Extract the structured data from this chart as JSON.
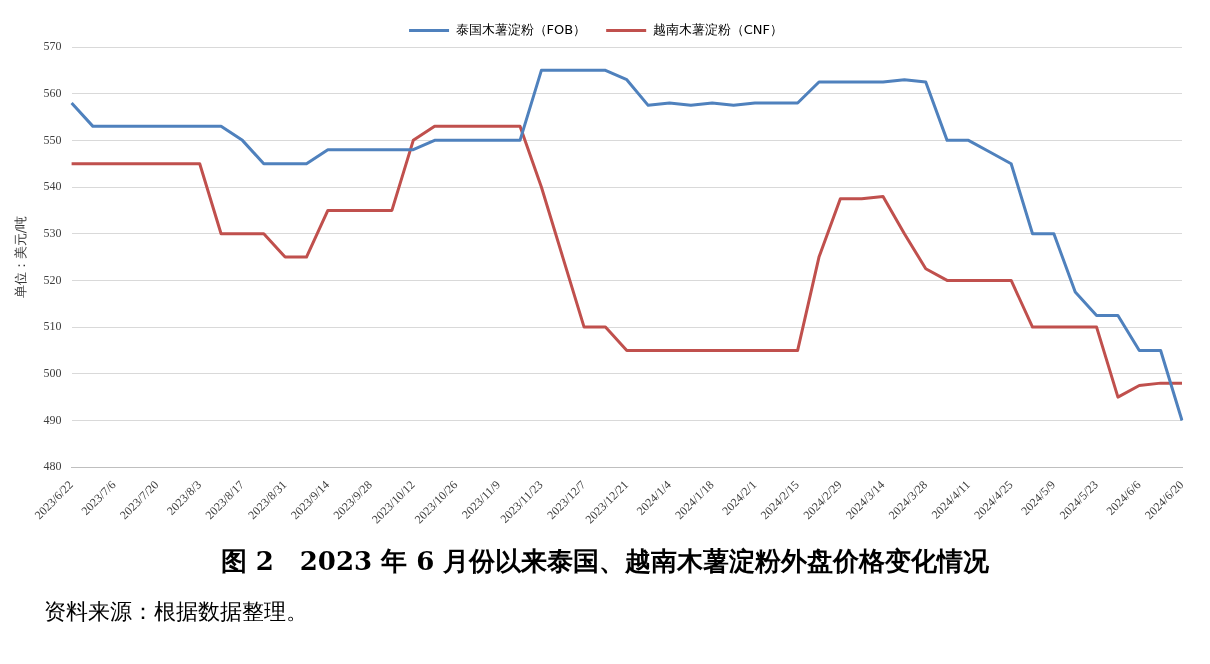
{
  "chart_data": {
    "type": "line",
    "title": "图 2　2023 年 6 月份以来泰国、越南木薯淀粉外盘价格变化情况",
    "ylabel": "单位：美元/吨",
    "annotations": [
      "资料来源：根据数据整理。"
    ],
    "categories": [
      "2023/6/22",
      null,
      "2023/7/6",
      null,
      "2023/7/20",
      null,
      "2023/8/3",
      null,
      "2023/8/17",
      null,
      "2023/8/31",
      null,
      "2023/9/14",
      null,
      "2023/9/28",
      null,
      "2023/10/12",
      null,
      "2023/10/26",
      null,
      "2023/11/9",
      null,
      "2023/11/23",
      null,
      "2023/12/7",
      null,
      "2023/12/21",
      null,
      "2024/1/4",
      null,
      "2024/1/18",
      null,
      "2024/2/1",
      null,
      "2024/2/15",
      null,
      "2024/2/29",
      null,
      "2024/3/14",
      null,
      "2024/3/28",
      null,
      "2024/4/11",
      null,
      "2024/4/25",
      null,
      "2024/5/9",
      null,
      "2024/5/23",
      null,
      "2024/6/6",
      null,
      "2024/6/20"
    ],
    "series": [
      {
        "name": "泰国木薯淀粉（FOB）",
        "color": "#4f81bd",
        "values": [
          558,
          553,
          553,
          553,
          553,
          553,
          553,
          553,
          550,
          545,
          545,
          545,
          548,
          548,
          548,
          548,
          548,
          550,
          550,
          550,
          550,
          550,
          565,
          565,
          565,
          565,
          563,
          557.5,
          558,
          557.5,
          558,
          557.5,
          558,
          558,
          558,
          562.5,
          562.5,
          562.5,
          562.5,
          563,
          562.5,
          550,
          550,
          547.5,
          545,
          530,
          530,
          517.5,
          512.5,
          512.5,
          505,
          505,
          490
        ]
      },
      {
        "name": "越南木薯淀粉（CNF）",
        "color": "#c0504d",
        "values": [
          545,
          545,
          545,
          545,
          545,
          545,
          545,
          530,
          530,
          530,
          525,
          525,
          535,
          535,
          535,
          535,
          550,
          553,
          553,
          553,
          553,
          553,
          540,
          525,
          510,
          510,
          505,
          505,
          505,
          505,
          505,
          505,
          505,
          505,
          505,
          525,
          537.5,
          537.5,
          538,
          530,
          522.5,
          520,
          520,
          520,
          520,
          510,
          510,
          510,
          510,
          495,
          497.5,
          498,
          498
        ]
      }
    ],
    "ylim": [
      480,
      570
    ],
    "yticks": [
      480,
      490,
      500,
      510,
      520,
      530,
      540,
      550,
      560,
      570
    ],
    "grid": "y",
    "legend": "top",
    "marker": "none",
    "line_style": "solid"
  }
}
